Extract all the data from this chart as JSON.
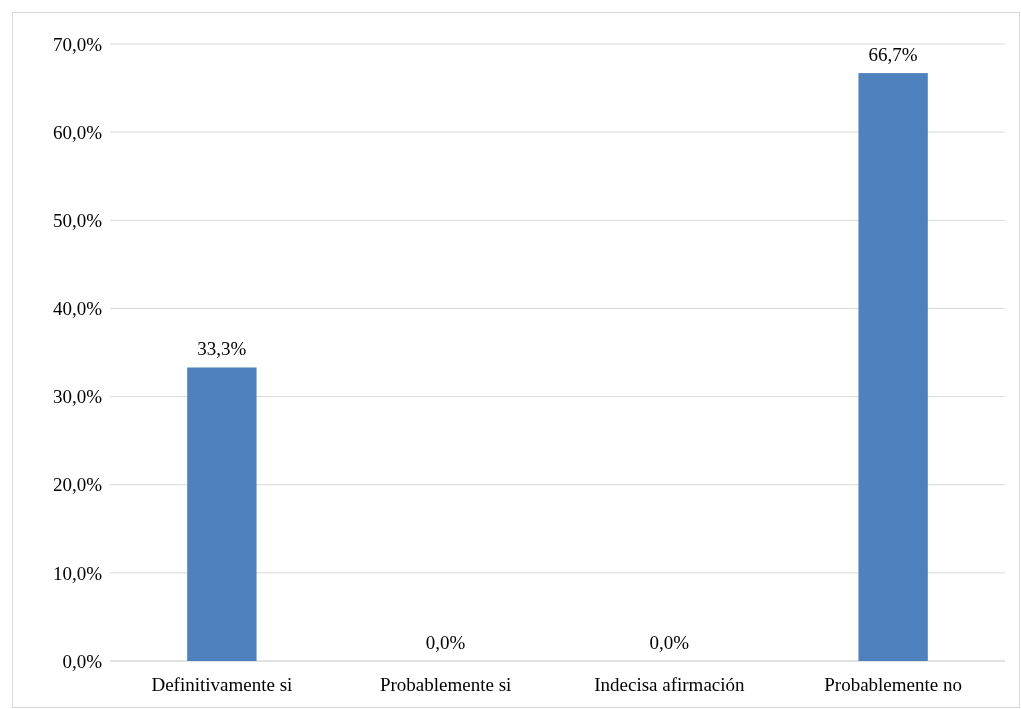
{
  "chart_data": {
    "type": "bar",
    "categories": [
      "Definitivamente si",
      "Probablemente si",
      "Indecisa afirmación",
      "Probablemente no"
    ],
    "values": [
      33.3,
      0,
      0,
      66.7
    ],
    "color": "#4f81bd",
    "value_labels": [
      "33,3%",
      "0,0%",
      "0,0%",
      "66,7%"
    ],
    "ylim": [
      0,
      70
    ],
    "yticks": [
      {
        "value": 0,
        "label": "0,0%"
      },
      {
        "value": 10,
        "label": "10,0%"
      },
      {
        "value": 20,
        "label": "20,0%"
      },
      {
        "value": 30,
        "label": "30,0%"
      },
      {
        "value": 40,
        "label": "40,0%"
      },
      {
        "value": 50,
        "label": "50,0%"
      },
      {
        "value": 60,
        "label": "60,0%"
      },
      {
        "value": 70,
        "label": "70,0%"
      }
    ],
    "grid": "y"
  }
}
